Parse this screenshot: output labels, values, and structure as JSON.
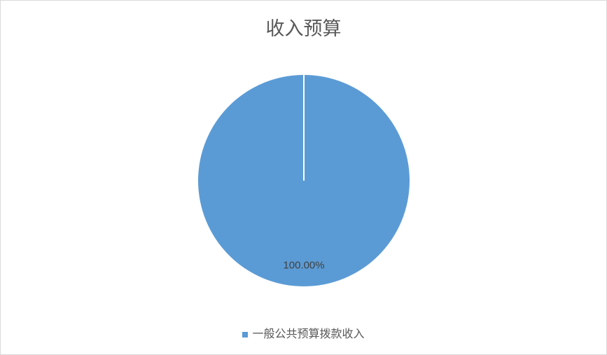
{
  "chart_data": {
    "type": "pie",
    "title": "收入预算",
    "categories": [
      "一般公共预算拨款收入"
    ],
    "values": [
      100.0
    ],
    "data_labels": [
      "100.00%"
    ],
    "colors": [
      "#5b9bd5"
    ],
    "legend_position": "bottom"
  }
}
